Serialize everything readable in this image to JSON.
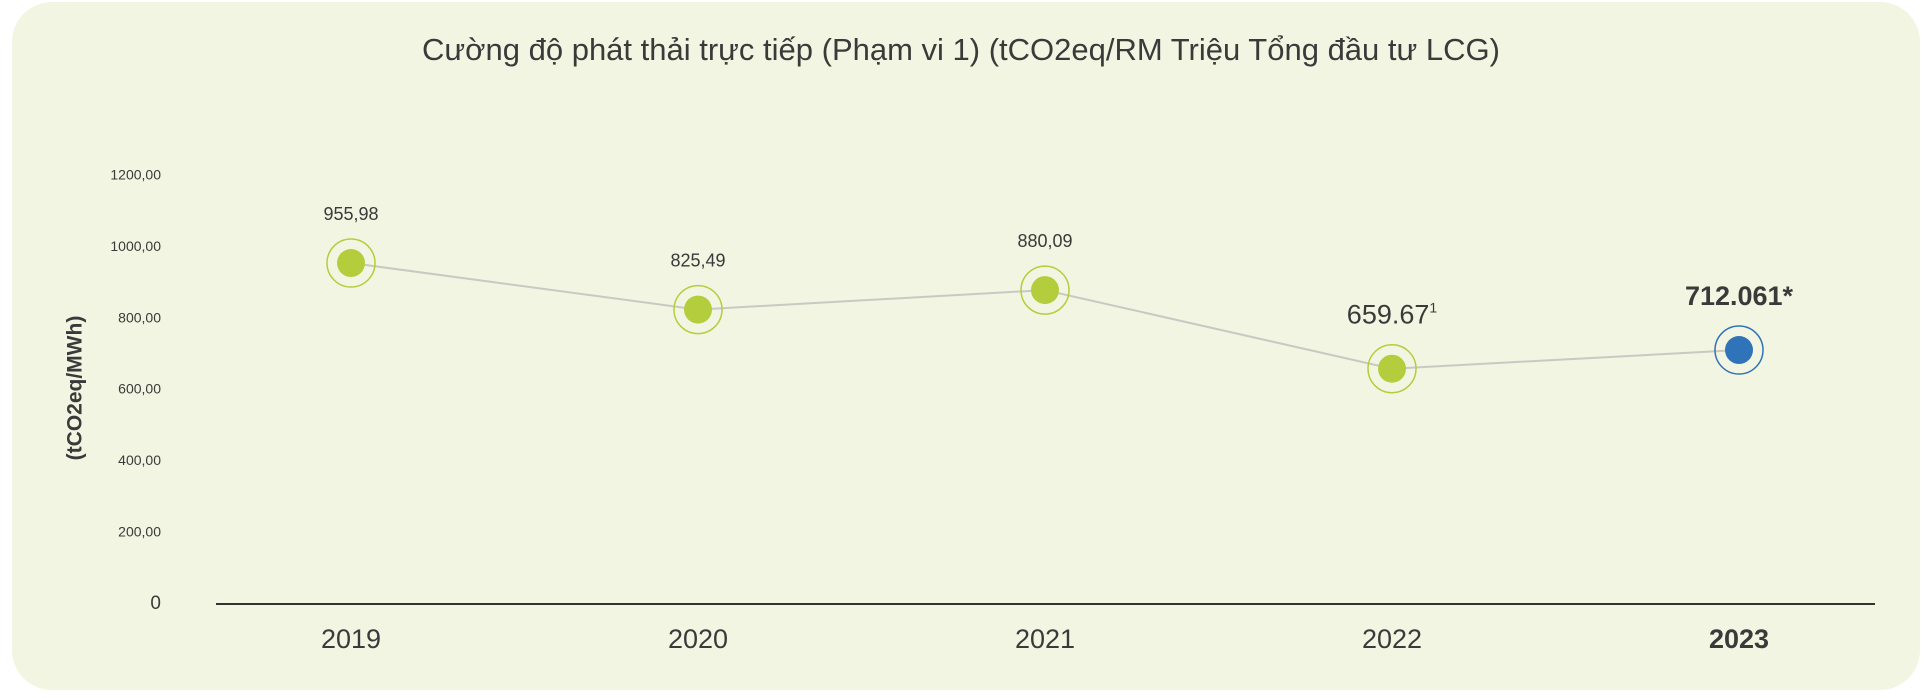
{
  "chart_data": {
    "type": "line",
    "title": "Cường độ phát thải trực tiếp (Phạm vi 1) (tCO2eq/RM Triệu Tổng đầu tư LCG)",
    "y_label": "(tCO2eq/MWh)",
    "categories": [
      "2019",
      "2020",
      "2021",
      "2022",
      "2023"
    ],
    "values": [
      955.98,
      825.49,
      880.09,
      659.67,
      712.061
    ],
    "value_labels": [
      "955,98",
      "825,49",
      "880,09",
      "659.67",
      "712.061*"
    ],
    "value_label_notes": [
      null,
      null,
      null,
      "1",
      null
    ],
    "colors": [
      "#b4cd3c",
      "#b4cd3c",
      "#b4cd3c",
      "#b4cd3c",
      "#2f74b8"
    ],
    "line_color": "#c9c9c4",
    "highlight_index": 4,
    "ylim": [
      0,
      1200
    ],
    "yticks": [
      0,
      {
        "value": 200,
        "label": "200,00"
      },
      {
        "value": 400,
        "label": "400,00"
      },
      {
        "value": 600,
        "label": "600,00"
      },
      {
        "value": 800,
        "label": "800,00"
      },
      {
        "value": 1000,
        "label": "1000,00"
      },
      {
        "value": 1200,
        "label": "1200,00"
      }
    ]
  }
}
